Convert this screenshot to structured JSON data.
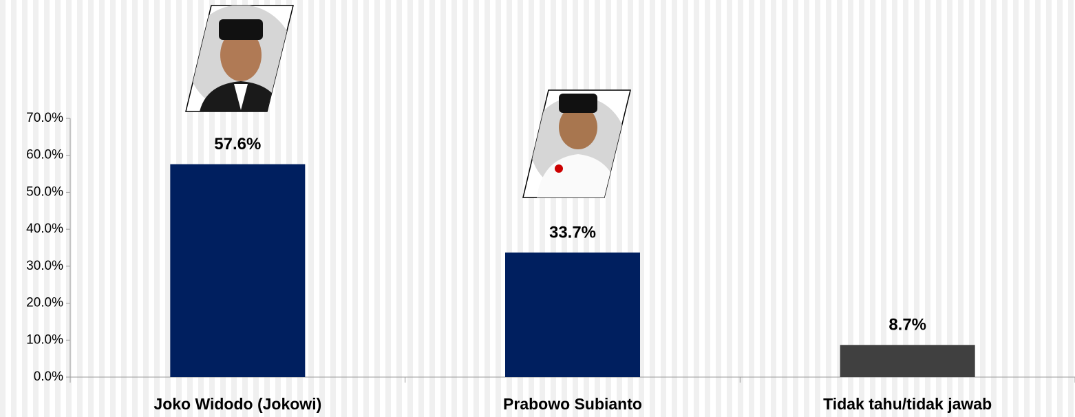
{
  "chart_data": {
    "type": "bar",
    "categories": [
      "Joko Widodo (Jokowi)",
      "Prabowo Subianto",
      "Tidak tahu/tidak jawab"
    ],
    "values": [
      57.6,
      33.7,
      8.7
    ],
    "value_labels": [
      "57.6%",
      "33.7%",
      "8.7%"
    ],
    "colors": [
      "#001f5f",
      "#001f5f",
      "#404040"
    ],
    "ylim": [
      0,
      70
    ],
    "yticks": [
      {
        "value": 0,
        "label": "0.0%"
      },
      {
        "value": 10,
        "label": "10.0%"
      },
      {
        "value": 20,
        "label": "20.0%"
      },
      {
        "value": 30,
        "label": "30.0%"
      },
      {
        "value": 40,
        "label": "40.0%"
      },
      {
        "value": 50,
        "label": "50.0%"
      },
      {
        "value": 60,
        "label": "60.0%"
      },
      {
        "value": 70,
        "label": "70.0%"
      }
    ],
    "grid": false
  }
}
